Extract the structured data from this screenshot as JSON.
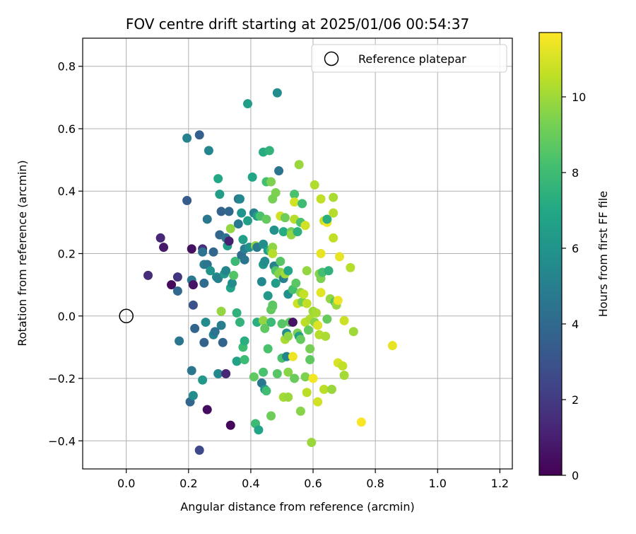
{
  "chart_data": {
    "type": "scatter",
    "title": "FOV centre drift starting at 2025/01/06 00:54:37",
    "xlabel": "Angular distance from reference (arcmin)",
    "ylabel": "Rotation from reference (arcmin)",
    "xlim": [
      -0.14,
      1.24
    ],
    "ylim": [
      -0.49,
      0.89
    ],
    "xticks": [
      0.0,
      0.2,
      0.4,
      0.6,
      0.8,
      1.0,
      1.2
    ],
    "xtick_labels": [
      "0.0",
      "0.2",
      "0.4",
      "0.6",
      "0.8",
      "1.0",
      "1.2"
    ],
    "yticks": [
      -0.4,
      -0.2,
      0.0,
      0.2,
      0.4,
      0.6,
      0.8
    ],
    "ytick_labels": [
      "−0.4",
      "−0.2",
      "0.0",
      "0.2",
      "0.4",
      "0.6",
      "0.8"
    ],
    "grid": true,
    "legend": {
      "placement": "top-right",
      "entries": [
        "Reference platepar"
      ]
    },
    "reference_point": {
      "name": "Reference platepar",
      "x": 0.0,
      "y": 0.0
    },
    "colorbar": {
      "label": "Hours from first FF file",
      "colormap": "viridis",
      "range": [
        0,
        11.7
      ],
      "ticks": [
        0,
        2,
        4,
        6,
        8,
        10
      ],
      "tick_labels": [
        "0",
        "2",
        "4",
        "6",
        "8",
        "10"
      ]
    },
    "points": [
      {
        "x": 0.07,
        "y": 0.13,
        "h": 1.5
      },
      {
        "x": 0.11,
        "y": 0.25,
        "h": 1.3
      },
      {
        "x": 0.12,
        "y": 0.22,
        "h": 0.8
      },
      {
        "x": 0.145,
        "y": 0.1,
        "h": 0.3
      },
      {
        "x": 0.165,
        "y": 0.125,
        "h": 1.8
      },
      {
        "x": 0.165,
        "y": 0.08,
        "h": 4.0
      },
      {
        "x": 0.17,
        "y": -0.08,
        "h": 4.6
      },
      {
        "x": 0.195,
        "y": 0.57,
        "h": 5.2
      },
      {
        "x": 0.195,
        "y": 0.37,
        "h": 3.4
      },
      {
        "x": 0.21,
        "y": 0.215,
        "h": 0.5
      },
      {
        "x": 0.21,
        "y": 0.115,
        "h": 4.7
      },
      {
        "x": 0.215,
        "y": 0.1,
        "h": 0.6
      },
      {
        "x": 0.215,
        "y": 0.035,
        "h": 3.0
      },
      {
        "x": 0.21,
        "y": -0.175,
        "h": 4.6
      },
      {
        "x": 0.205,
        "y": -0.275,
        "h": 3.9
      },
      {
        "x": 0.215,
        "y": -0.255,
        "h": 5.6
      },
      {
        "x": 0.22,
        "y": -0.04,
        "h": 3.8
      },
      {
        "x": 0.235,
        "y": 0.58,
        "h": 3.5
      },
      {
        "x": 0.235,
        "y": -0.43,
        "h": 2.5
      },
      {
        "x": 0.245,
        "y": 0.215,
        "h": 1.6
      },
      {
        "x": 0.245,
        "y": 0.205,
        "h": 4.4
      },
      {
        "x": 0.245,
        "y": -0.205,
        "h": 6.2
      },
      {
        "x": 0.25,
        "y": 0.165,
        "h": 4.9
      },
      {
        "x": 0.25,
        "y": 0.105,
        "h": 4.1
      },
      {
        "x": 0.25,
        "y": -0.085,
        "h": 3.7
      },
      {
        "x": 0.255,
        "y": -0.02,
        "h": 5.6
      },
      {
        "x": 0.26,
        "y": 0.31,
        "h": 4.7
      },
      {
        "x": 0.26,
        "y": 0.165,
        "h": 4.5
      },
      {
        "x": 0.26,
        "y": -0.3,
        "h": 0.4
      },
      {
        "x": 0.265,
        "y": 0.53,
        "h": 5.3
      },
      {
        "x": 0.27,
        "y": 0.145,
        "h": 6.0
      },
      {
        "x": 0.28,
        "y": 0.205,
        "h": 3.9
      },
      {
        "x": 0.28,
        "y": -0.06,
        "h": 5.2
      },
      {
        "x": 0.285,
        "y": -0.05,
        "h": 4.4
      },
      {
        "x": 0.29,
        "y": 0.125,
        "h": 5.7
      },
      {
        "x": 0.295,
        "y": 0.44,
        "h": 7.0
      },
      {
        "x": 0.295,
        "y": -0.185,
        "h": 5.4
      },
      {
        "x": 0.295,
        "y": 0.12,
        "h": 5.1
      },
      {
        "x": 0.3,
        "y": 0.26,
        "h": 3.9
      },
      {
        "x": 0.3,
        "y": 0.39,
        "h": 6.5
      },
      {
        "x": 0.305,
        "y": 0.335,
        "h": 3.7
      },
      {
        "x": 0.305,
        "y": -0.03,
        "h": 4.9
      },
      {
        "x": 0.305,
        "y": 0.015,
        "h": 9.8
      },
      {
        "x": 0.31,
        "y": -0.085,
        "h": 3.8
      },
      {
        "x": 0.315,
        "y": 0.135,
        "h": 6.3
      },
      {
        "x": 0.32,
        "y": 0.145,
        "h": 5.3
      },
      {
        "x": 0.32,
        "y": -0.185,
        "h": 1.3
      },
      {
        "x": 0.32,
        "y": 0.25,
        "h": 4.4
      },
      {
        "x": 0.325,
        "y": 0.225,
        "h": 6.5
      },
      {
        "x": 0.33,
        "y": 0.335,
        "h": 3.9
      },
      {
        "x": 0.33,
        "y": 0.24,
        "h": 1.0
      },
      {
        "x": 0.335,
        "y": -0.35,
        "h": 0.2
      },
      {
        "x": 0.335,
        "y": 0.28,
        "h": 9.8
      },
      {
        "x": 0.335,
        "y": 0.09,
        "h": 6.8
      },
      {
        "x": 0.34,
        "y": 0.105,
        "h": 5.6
      },
      {
        "x": 0.345,
        "y": 0.13,
        "h": 8.5
      },
      {
        "x": 0.35,
        "y": 0.175,
        "h": 7.9
      },
      {
        "x": 0.355,
        "y": 0.01,
        "h": 7.5
      },
      {
        "x": 0.355,
        "y": -0.145,
        "h": 6.7
      },
      {
        "x": 0.36,
        "y": 0.295,
        "h": 4.7
      },
      {
        "x": 0.36,
        "y": 0.375,
        "h": 4.3
      },
      {
        "x": 0.365,
        "y": 0.375,
        "h": 5.4
      },
      {
        "x": 0.365,
        "y": -0.02,
        "h": 7.6
      },
      {
        "x": 0.37,
        "y": 0.33,
        "h": 6.0
      },
      {
        "x": 0.37,
        "y": 0.195,
        "h": 4.2
      },
      {
        "x": 0.375,
        "y": 0.245,
        "h": 6.6
      },
      {
        "x": 0.375,
        "y": -0.1,
        "h": 8.0
      },
      {
        "x": 0.38,
        "y": 0.215,
        "h": 4.9
      },
      {
        "x": 0.38,
        "y": 0.18,
        "h": 4.6
      },
      {
        "x": 0.38,
        "y": -0.08,
        "h": 7.3
      },
      {
        "x": 0.38,
        "y": -0.14,
        "h": 8.0
      },
      {
        "x": 0.39,
        "y": 0.68,
        "h": 6.5
      },
      {
        "x": 0.39,
        "y": 0.305,
        "h": 6.6
      },
      {
        "x": 0.395,
        "y": 0.22,
        "h": 5.8
      },
      {
        "x": 0.405,
        "y": 0.445,
        "h": 6.8
      },
      {
        "x": 0.41,
        "y": 0.33,
        "h": 5.0
      },
      {
        "x": 0.41,
        "y": -0.195,
        "h": 8.8
      },
      {
        "x": 0.415,
        "y": 0.225,
        "h": 9.8
      },
      {
        "x": 0.415,
        "y": -0.345,
        "h": 8.0
      },
      {
        "x": 0.42,
        "y": 0.32,
        "h": 6.5
      },
      {
        "x": 0.42,
        "y": 0.22,
        "h": 4.8
      },
      {
        "x": 0.42,
        "y": -0.02,
        "h": 7.3
      },
      {
        "x": 0.425,
        "y": -0.365,
        "h": 6.8
      },
      {
        "x": 0.43,
        "y": 0.32,
        "h": 8.3
      },
      {
        "x": 0.435,
        "y": 0.11,
        "h": 5.4
      },
      {
        "x": 0.435,
        "y": -0.215,
        "h": 4.6
      },
      {
        "x": 0.44,
        "y": 0.525,
        "h": 7.2
      },
      {
        "x": 0.44,
        "y": 0.23,
        "h": 5.7
      },
      {
        "x": 0.44,
        "y": 0.165,
        "h": 6.1
      },
      {
        "x": 0.44,
        "y": -0.015,
        "h": 9.8
      },
      {
        "x": 0.44,
        "y": -0.18,
        "h": 8.3
      },
      {
        "x": 0.445,
        "y": 0.175,
        "h": 5.6
      },
      {
        "x": 0.445,
        "y": -0.04,
        "h": 8.8
      },
      {
        "x": 0.445,
        "y": -0.235,
        "h": 5.9
      },
      {
        "x": 0.45,
        "y": 0.43,
        "h": 8.2
      },
      {
        "x": 0.45,
        "y": 0.31,
        "h": 8.9
      },
      {
        "x": 0.45,
        "y": -0.24,
        "h": 8.1
      },
      {
        "x": 0.455,
        "y": 0.21,
        "h": 6.5
      },
      {
        "x": 0.455,
        "y": 0.065,
        "h": 6.2
      },
      {
        "x": 0.455,
        "y": -0.105,
        "h": 8.3
      },
      {
        "x": 0.46,
        "y": 0.53,
        "h": 7.6
      },
      {
        "x": 0.465,
        "y": 0.43,
        "h": 9.4
      },
      {
        "x": 0.465,
        "y": 0.21,
        "h": 8.5
      },
      {
        "x": 0.465,
        "y": 0.02,
        "h": 8.8
      },
      {
        "x": 0.465,
        "y": -0.02,
        "h": 7.9
      },
      {
        "x": 0.465,
        "y": -0.32,
        "h": 9.1
      },
      {
        "x": 0.47,
        "y": 0.375,
        "h": 9.3
      },
      {
        "x": 0.47,
        "y": 0.22,
        "h": 9.7
      },
      {
        "x": 0.47,
        "y": 0.2,
        "h": 10.4
      },
      {
        "x": 0.47,
        "y": 0.03,
        "h": 9.0
      },
      {
        "x": 0.47,
        "y": 0.035,
        "h": 8.7
      },
      {
        "x": 0.475,
        "y": 0.275,
        "h": 5.9
      },
      {
        "x": 0.475,
        "y": 0.16,
        "h": 5.1
      },
      {
        "x": 0.48,
        "y": 0.395,
        "h": 9.4
      },
      {
        "x": 0.48,
        "y": 0.145,
        "h": 8.5
      },
      {
        "x": 0.48,
        "y": 0.105,
        "h": 6.5
      },
      {
        "x": 0.485,
        "y": 0.715,
        "h": 5.6
      },
      {
        "x": 0.485,
        "y": -0.185,
        "h": 8.6
      },
      {
        "x": 0.49,
        "y": 0.465,
        "h": 4.5
      },
      {
        "x": 0.49,
        "y": 0.135,
        "h": 9.5
      },
      {
        "x": 0.495,
        "y": 0.32,
        "h": 10.9
      },
      {
        "x": 0.495,
        "y": 0.175,
        "h": 8.6
      },
      {
        "x": 0.495,
        "y": 0.14,
        "h": 9.6
      },
      {
        "x": 0.5,
        "y": -0.025,
        "h": 8.6
      },
      {
        "x": 0.5,
        "y": -0.135,
        "h": 8.3
      },
      {
        "x": 0.505,
        "y": 0.27,
        "h": 7.2
      },
      {
        "x": 0.505,
        "y": 0.12,
        "h": 5.0
      },
      {
        "x": 0.505,
        "y": -0.26,
        "h": 10.1
      },
      {
        "x": 0.51,
        "y": 0.315,
        "h": 9.1
      },
      {
        "x": 0.51,
        "y": 0.135,
        "h": 10.1
      },
      {
        "x": 0.51,
        "y": -0.075,
        "h": 10.2
      },
      {
        "x": 0.515,
        "y": -0.055,
        "h": 5.7
      },
      {
        "x": 0.515,
        "y": -0.13,
        "h": 5.3
      },
      {
        "x": 0.52,
        "y": 0.145,
        "h": 6.9
      },
      {
        "x": 0.52,
        "y": 0.07,
        "h": 5.8
      },
      {
        "x": 0.52,
        "y": -0.065,
        "h": 9.7
      },
      {
        "x": 0.52,
        "y": -0.18,
        "h": 9.6
      },
      {
        "x": 0.52,
        "y": -0.26,
        "h": 9.9
      },
      {
        "x": 0.525,
        "y": -0.02,
        "h": 8.7
      },
      {
        "x": 0.53,
        "y": 0.27,
        "h": 9.1
      },
      {
        "x": 0.53,
        "y": 0.26,
        "h": 9.8
      },
      {
        "x": 0.535,
        "y": 0.085,
        "h": 8.2
      },
      {
        "x": 0.535,
        "y": -0.02,
        "h": 0.6
      },
      {
        "x": 0.535,
        "y": -0.13,
        "h": 11.4
      },
      {
        "x": 0.54,
        "y": 0.39,
        "h": 8.3
      },
      {
        "x": 0.54,
        "y": 0.365,
        "h": 10.9
      },
      {
        "x": 0.54,
        "y": 0.31,
        "h": 10.4
      },
      {
        "x": 0.54,
        "y": -0.2,
        "h": 9.0
      },
      {
        "x": 0.545,
        "y": 0.105,
        "h": 8.7
      },
      {
        "x": 0.55,
        "y": 0.27,
        "h": 7.4
      },
      {
        "x": 0.55,
        "y": 0.04,
        "h": 10.8
      },
      {
        "x": 0.55,
        "y": -0.055,
        "h": 9.3
      },
      {
        "x": 0.555,
        "y": 0.485,
        "h": 9.9
      },
      {
        "x": 0.555,
        "y": -0.065,
        "h": 6.6
      },
      {
        "x": 0.56,
        "y": 0.3,
        "h": 8.3
      },
      {
        "x": 0.56,
        "y": 0.075,
        "h": 9.8
      },
      {
        "x": 0.56,
        "y": -0.075,
        "h": 8.9
      },
      {
        "x": 0.56,
        "y": -0.305,
        "h": 9.6
      },
      {
        "x": 0.565,
        "y": 0.36,
        "h": 8.0
      },
      {
        "x": 0.565,
        "y": 0.045,
        "h": 9.2
      },
      {
        "x": 0.57,
        "y": 0.07,
        "h": 10.7
      },
      {
        "x": 0.575,
        "y": 0.29,
        "h": 10.9
      },
      {
        "x": 0.575,
        "y": -0.02,
        "h": 10.5
      },
      {
        "x": 0.575,
        "y": -0.195,
        "h": 9.4
      },
      {
        "x": 0.58,
        "y": 0.145,
        "h": 9.8
      },
      {
        "x": 0.58,
        "y": 0.04,
        "h": 10.6
      },
      {
        "x": 0.58,
        "y": -0.245,
        "h": 10.5
      },
      {
        "x": 0.585,
        "y": -0.045,
        "h": 8.9
      },
      {
        "x": 0.59,
        "y": -0.14,
        "h": 8.8
      },
      {
        "x": 0.59,
        "y": -0.01,
        "h": 10.3
      },
      {
        "x": 0.59,
        "y": -0.105,
        "h": 9.3
      },
      {
        "x": 0.595,
        "y": -0.405,
        "h": 9.9
      },
      {
        "x": 0.6,
        "y": 0.015,
        "h": 10.0
      },
      {
        "x": 0.6,
        "y": -0.2,
        "h": 11.5
      },
      {
        "x": 0.605,
        "y": 0.42,
        "h": 10.3
      },
      {
        "x": 0.605,
        "y": -0.02,
        "h": 9.6
      },
      {
        "x": 0.61,
        "y": 0.01,
        "h": 10.2
      },
      {
        "x": 0.615,
        "y": -0.275,
        "h": 10.9
      },
      {
        "x": 0.615,
        "y": -0.03,
        "h": 11.1
      },
      {
        "x": 0.62,
        "y": 0.135,
        "h": 9.6
      },
      {
        "x": 0.62,
        "y": -0.06,
        "h": 10.4
      },
      {
        "x": 0.625,
        "y": 0.375,
        "h": 10.6
      },
      {
        "x": 0.625,
        "y": 0.2,
        "h": 11.3
      },
      {
        "x": 0.625,
        "y": 0.075,
        "h": 11.2
      },
      {
        "x": 0.625,
        "y": 0.12,
        "h": 9.4
      },
      {
        "x": 0.63,
        "y": 0.14,
        "h": 8.2
      },
      {
        "x": 0.635,
        "y": 0.305,
        "h": 10.8
      },
      {
        "x": 0.635,
        "y": -0.235,
        "h": 10.5
      },
      {
        "x": 0.64,
        "y": -0.065,
        "h": 10.2
      },
      {
        "x": 0.645,
        "y": 0.3,
        "h": 11.4
      },
      {
        "x": 0.645,
        "y": 0.31,
        "h": 7.3
      },
      {
        "x": 0.645,
        "y": -0.01,
        "h": 8.9
      },
      {
        "x": 0.65,
        "y": 0.145,
        "h": 7.5
      },
      {
        "x": 0.655,
        "y": 0.055,
        "h": 9.8
      },
      {
        "x": 0.66,
        "y": -0.235,
        "h": 9.9
      },
      {
        "x": 0.665,
        "y": 0.38,
        "h": 10.2
      },
      {
        "x": 0.665,
        "y": 0.33,
        "h": 10.4
      },
      {
        "x": 0.665,
        "y": 0.25,
        "h": 10.6
      },
      {
        "x": 0.67,
        "y": 0.045,
        "h": 8.5
      },
      {
        "x": 0.675,
        "y": 0.035,
        "h": 9.9
      },
      {
        "x": 0.68,
        "y": -0.15,
        "h": 11.0
      },
      {
        "x": 0.68,
        "y": 0.05,
        "h": 11.4
      },
      {
        "x": 0.685,
        "y": 0.19,
        "h": 11.3
      },
      {
        "x": 0.695,
        "y": -0.16,
        "h": 10.6
      },
      {
        "x": 0.7,
        "y": -0.19,
        "h": 10.1
      },
      {
        "x": 0.7,
        "y": -0.015,
        "h": 10.8
      },
      {
        "x": 0.72,
        "y": 0.155,
        "h": 10.4
      },
      {
        "x": 0.73,
        "y": -0.05,
        "h": 10.0
      },
      {
        "x": 0.755,
        "y": -0.34,
        "h": 11.6
      },
      {
        "x": 0.855,
        "y": -0.095,
        "h": 11.3
      }
    ]
  }
}
